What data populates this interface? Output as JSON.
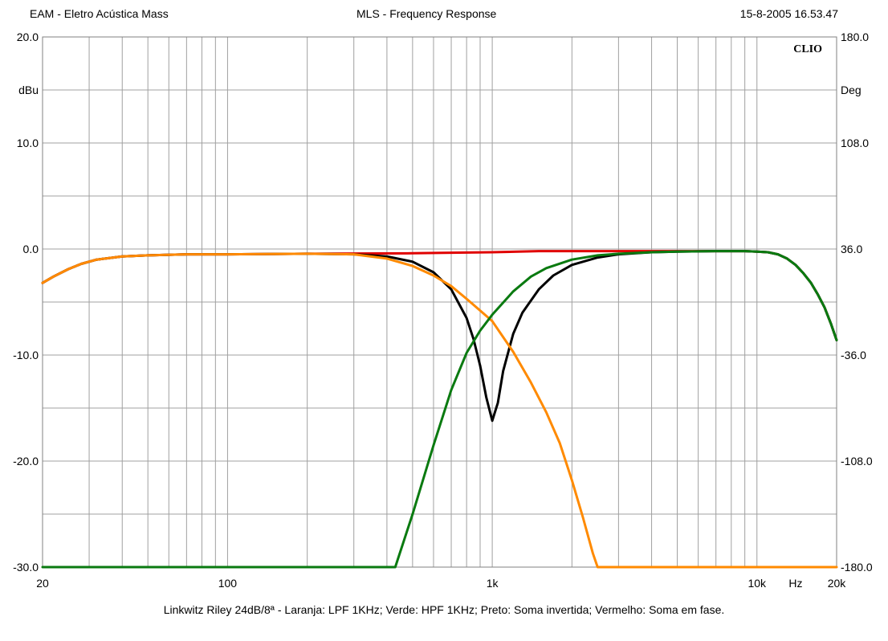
{
  "header": {
    "left": "EAM - Eletro Acústica Mass",
    "center": "MLS - Frequency Response",
    "right": "15-8-2005 16.53.47"
  },
  "caption": "Linkwitz Riley 24dB/8ª - Laranja: LPF 1KHz; Verde: HPF 1KHz; Preto: Soma invertida;  Vermelho: Soma em fase.",
  "chart_data": {
    "type": "line",
    "brand": "CLIO",
    "x_scale": "log",
    "xlim": [
      20,
      20000
    ],
    "ylim": [
      -30,
      20
    ],
    "y2lim": [
      -180,
      180
    ],
    "ylabel": "dBu",
    "y2label": "Deg",
    "xunit_label": "Hz",
    "grid": true,
    "x_ticks": [
      {
        "value": 20,
        "label": "20"
      },
      {
        "value": 100,
        "label": "100"
      },
      {
        "value": 1000,
        "label": "1k"
      },
      {
        "value": 10000,
        "label": "10k"
      },
      {
        "value": 20000,
        "label": "20k"
      }
    ],
    "y_ticks": [
      {
        "value": 20,
        "label": "20.0"
      },
      {
        "value": 10,
        "label": "10.0"
      },
      {
        "value": 0,
        "label": "0.0"
      },
      {
        "value": -10,
        "label": "-10.0"
      },
      {
        "value": -20,
        "label": "-20.0"
      },
      {
        "value": -30,
        "label": "-30.0"
      }
    ],
    "y2_ticks": [
      {
        "value": 180,
        "label": "180.0"
      },
      {
        "value": 108,
        "label": "108.0"
      },
      {
        "value": 36,
        "label": "36.0"
      },
      {
        "value": -36,
        "label": "-36.0"
      },
      {
        "value": -108,
        "label": "-108.0"
      },
      {
        "value": -180,
        "label": "-180.0"
      }
    ],
    "series": [
      {
        "color": "#e00000",
        "points": [
          [
            20,
            -3.2
          ],
          [
            22,
            -2.6
          ],
          [
            25,
            -1.9
          ],
          [
            28,
            -1.4
          ],
          [
            32,
            -1.0
          ],
          [
            40,
            -0.7
          ],
          [
            50,
            -0.6
          ],
          [
            70,
            -0.5
          ],
          [
            100,
            -0.5
          ],
          [
            200,
            -0.45
          ],
          [
            500,
            -0.4
          ],
          [
            700,
            -0.35
          ],
          [
            1000,
            -0.3
          ],
          [
            1500,
            -0.2
          ],
          [
            2000,
            -0.2
          ],
          [
            3000,
            -0.2
          ],
          [
            5000,
            -0.2
          ],
          [
            7000,
            -0.2
          ],
          [
            9000,
            -0.2
          ],
          [
            10000,
            -0.25
          ],
          [
            11000,
            -0.3
          ],
          [
            12000,
            -0.5
          ],
          [
            13000,
            -0.9
          ],
          [
            14000,
            -1.5
          ],
          [
            15000,
            -2.3
          ],
          [
            16000,
            -3.2
          ],
          [
            17000,
            -4.3
          ],
          [
            18000,
            -5.5
          ],
          [
            19000,
            -7.0
          ],
          [
            20000,
            -8.6
          ]
        ]
      },
      {
        "color": "#000000",
        "points": [
          [
            20,
            -3.2
          ],
          [
            22,
            -2.6
          ],
          [
            25,
            -1.9
          ],
          [
            28,
            -1.4
          ],
          [
            32,
            -1.0
          ],
          [
            40,
            -0.7
          ],
          [
            50,
            -0.6
          ],
          [
            70,
            -0.5
          ],
          [
            100,
            -0.5
          ],
          [
            200,
            -0.45
          ],
          [
            300,
            -0.5
          ],
          [
            400,
            -0.7
          ],
          [
            500,
            -1.2
          ],
          [
            600,
            -2.2
          ],
          [
            700,
            -3.8
          ],
          [
            800,
            -6.5
          ],
          [
            850,
            -8.5
          ],
          [
            900,
            -11.0
          ],
          [
            950,
            -14.0
          ],
          [
            1000,
            -16.2
          ],
          [
            1050,
            -14.5
          ],
          [
            1100,
            -11.5
          ],
          [
            1200,
            -8.0
          ],
          [
            1300,
            -6.0
          ],
          [
            1500,
            -3.8
          ],
          [
            1700,
            -2.5
          ],
          [
            2000,
            -1.5
          ],
          [
            2500,
            -0.8
          ],
          [
            3000,
            -0.5
          ],
          [
            4000,
            -0.3
          ],
          [
            5000,
            -0.25
          ],
          [
            7000,
            -0.2
          ],
          [
            9000,
            -0.2
          ],
          [
            10000,
            -0.25
          ],
          [
            11000,
            -0.3
          ],
          [
            12000,
            -0.5
          ],
          [
            13000,
            -0.9
          ],
          [
            14000,
            -1.5
          ],
          [
            15000,
            -2.3
          ],
          [
            16000,
            -3.2
          ],
          [
            17000,
            -4.3
          ],
          [
            18000,
            -5.5
          ],
          [
            19000,
            -7.0
          ],
          [
            20000,
            -8.6
          ]
        ]
      },
      {
        "color": "#ff8a00",
        "points": [
          [
            20,
            -3.2
          ],
          [
            22,
            -2.6
          ],
          [
            25,
            -1.9
          ],
          [
            28,
            -1.4
          ],
          [
            32,
            -1.0
          ],
          [
            40,
            -0.7
          ],
          [
            50,
            -0.6
          ],
          [
            70,
            -0.5
          ],
          [
            100,
            -0.5
          ],
          [
            200,
            -0.45
          ],
          [
            300,
            -0.5
          ],
          [
            400,
            -0.9
          ],
          [
            500,
            -1.6
          ],
          [
            600,
            -2.5
          ],
          [
            700,
            -3.5
          ],
          [
            800,
            -4.7
          ],
          [
            900,
            -5.8
          ],
          [
            1000,
            -6.8
          ],
          [
            1200,
            -9.7
          ],
          [
            1400,
            -12.6
          ],
          [
            1600,
            -15.4
          ],
          [
            1800,
            -18.3
          ],
          [
            2000,
            -21.8
          ],
          [
            2200,
            -25.3
          ],
          [
            2400,
            -28.7
          ],
          [
            2500,
            -30
          ],
          [
            20000,
            -30
          ]
        ]
      },
      {
        "color": "#0a7a10",
        "points": [
          [
            20,
            -30
          ],
          [
            430,
            -30
          ],
          [
            500,
            -25.0
          ],
          [
            600,
            -18.5
          ],
          [
            700,
            -13.3
          ],
          [
            800,
            -9.8
          ],
          [
            900,
            -7.7
          ],
          [
            1000,
            -6.2
          ],
          [
            1200,
            -4.0
          ],
          [
            1400,
            -2.6
          ],
          [
            1600,
            -1.8
          ],
          [
            2000,
            -1.0
          ],
          [
            2500,
            -0.6
          ],
          [
            3000,
            -0.45
          ],
          [
            4000,
            -0.3
          ],
          [
            5000,
            -0.25
          ],
          [
            7000,
            -0.2
          ],
          [
            9000,
            -0.2
          ],
          [
            10000,
            -0.25
          ],
          [
            11000,
            -0.3
          ],
          [
            12000,
            -0.5
          ],
          [
            13000,
            -0.9
          ],
          [
            14000,
            -1.5
          ],
          [
            15000,
            -2.3
          ],
          [
            16000,
            -3.2
          ],
          [
            17000,
            -4.3
          ],
          [
            18000,
            -5.5
          ],
          [
            19000,
            -7.0
          ],
          [
            20000,
            -8.6
          ]
        ]
      }
    ]
  }
}
